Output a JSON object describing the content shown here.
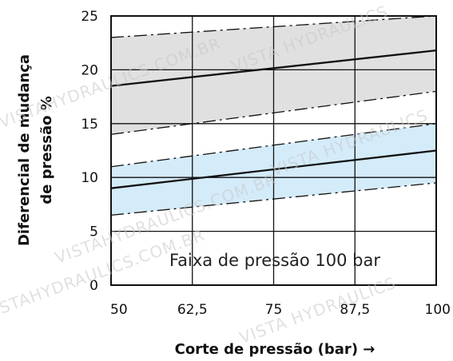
{
  "chart_data": {
    "type": "line",
    "title": "",
    "xlabel": "Corte de pressão (bar) →",
    "ylabel_lines": [
      "Diferencial de mudança",
      "de pressão %"
    ],
    "xlim": [
      50,
      100
    ],
    "ylim": [
      0,
      25
    ],
    "x_ticks": [
      50,
      62.5,
      75,
      87.5,
      100
    ],
    "x_tick_labels": [
      "50",
      "62,5",
      "75",
      "87,5",
      "100"
    ],
    "y_ticks": [
      0,
      5,
      10,
      15,
      20,
      25
    ],
    "y_tick_labels": [
      "0",
      "5",
      "10",
      "15",
      "20",
      "25"
    ],
    "grid": true,
    "annotation": "Faixa de pressão 100 bar",
    "bands": [
      {
        "fill": "#e0e0e0",
        "upper": {
          "x": [
            50,
            100
          ],
          "y": [
            23.0,
            25.0
          ]
        },
        "center": {
          "x": [
            50,
            100
          ],
          "y": [
            18.5,
            21.8
          ]
        },
        "lower": {
          "x": [
            50,
            100
          ],
          "y": [
            14.0,
            18.0
          ]
        }
      },
      {
        "fill": "#d4ebf9",
        "upper": {
          "x": [
            50,
            100
          ],
          "y": [
            11.0,
            15.0
          ]
        },
        "center": {
          "x": [
            50,
            100
          ],
          "y": [
            9.0,
            12.5
          ]
        },
        "lower": {
          "x": [
            50,
            100
          ],
          "y": [
            6.5,
            9.5
          ]
        }
      }
    ],
    "watermarks": [
      "VISTAHYDRAULICS.COM.BR",
      "VISTA HYDRAULICS",
      "VISTAHYDRAULICS.COM.BR",
      "VISTA HYDRAULICS",
      "VISTAHYDRAULICS.COM.BR",
      "VISTA HYDRAULICS"
    ]
  }
}
